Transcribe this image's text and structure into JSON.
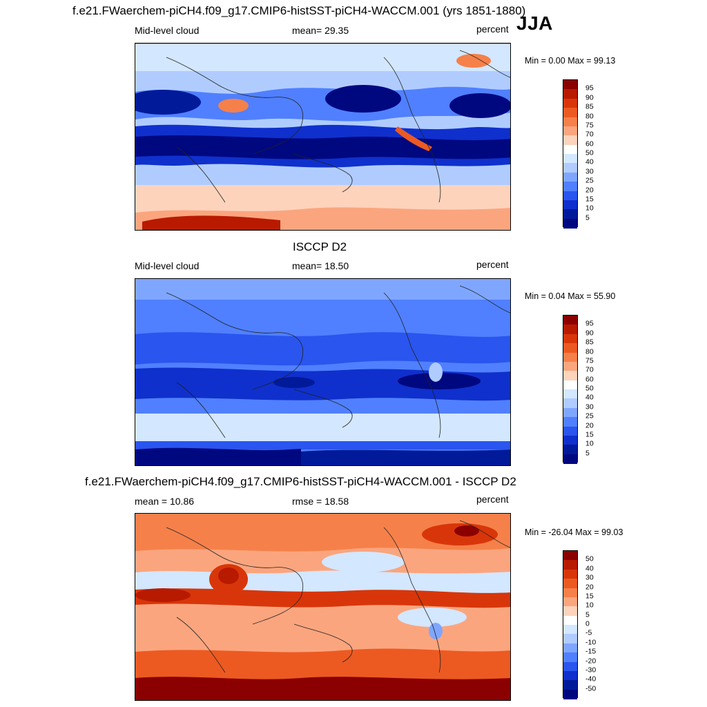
{
  "header": {
    "main_title": "f.e21.FWaerchem-piCH4.f09_g17.CMIP6-histSST-piCH4-WACCM.001 (yrs 1851-1880)",
    "season": "JJA"
  },
  "chart_data": [
    {
      "type": "heatmap",
      "title": "",
      "left_label": "Mid-level cloud",
      "center_label": "mean=  29.35",
      "units": "percent",
      "minmax": "Min =   0.00 Max =  99.13",
      "stats": {
        "mean": 29.35,
        "min": 0.0,
        "max": 99.13
      },
      "colorbar_levels": [
        "95",
        "90",
        "85",
        "80",
        "75",
        "70",
        "60",
        "50",
        "40",
        "30",
        "25",
        "20",
        "15",
        "10",
        "5"
      ],
      "colorbar_colors": [
        "#8b0000",
        "#b81a00",
        "#d8360a",
        "#ec5a22",
        "#f6804a",
        "#fba57e",
        "#fdd3bc",
        "#ffffff",
        "#d3e7ff",
        "#b0ccff",
        "#7fa6ff",
        "#5080ff",
        "#2a55ee",
        "#0f30cc",
        "#001a9a",
        "#000880"
      ]
    },
    {
      "type": "heatmap",
      "title": "ISCCP D2",
      "left_label": "Mid-level cloud",
      "center_label": "mean=  18.50",
      "units": "percent",
      "minmax": "Min =   0.04 Max =  55.90",
      "stats": {
        "mean": 18.5,
        "min": 0.04,
        "max": 55.9
      },
      "colorbar_levels": [
        "95",
        "90",
        "85",
        "80",
        "75",
        "70",
        "60",
        "50",
        "40",
        "30",
        "25",
        "20",
        "15",
        "10",
        "5"
      ],
      "colorbar_colors": [
        "#8b0000",
        "#b81a00",
        "#d8360a",
        "#ec5a22",
        "#f6804a",
        "#fba57e",
        "#fdd3bc",
        "#ffffff",
        "#d3e7ff",
        "#b0ccff",
        "#7fa6ff",
        "#5080ff",
        "#2a55ee",
        "#0f30cc",
        "#001a9a",
        "#000880"
      ]
    },
    {
      "type": "heatmap",
      "title": "f.e21.FWaerchem-piCH4.f09_g17.CMIP6-histSST-piCH4-WACCM.001 - ISCCP D2",
      "left_label": "mean =  10.86",
      "center_label": "rmse =  18.58",
      "units": "percent",
      "minmax": "Min = -26.04 Max =  99.03",
      "stats": {
        "mean": 10.86,
        "rmse": 18.58,
        "min": -26.04,
        "max": 99.03
      },
      "colorbar_levels": [
        "50",
        "40",
        "30",
        "20",
        "15",
        "10",
        "5",
        "0",
        "-5",
        "-10",
        "-15",
        "-20",
        "-30",
        "-40",
        "-50"
      ],
      "colorbar_colors": [
        "#8b0000",
        "#b81a00",
        "#d8360a",
        "#ec5a22",
        "#f6804a",
        "#fba57e",
        "#fdd3bc",
        "#ffffff",
        "#d3e7ff",
        "#b0ccff",
        "#7fa6ff",
        "#5080ff",
        "#2a55ee",
        "#0f30cc",
        "#001a9a",
        "#000880"
      ]
    }
  ]
}
